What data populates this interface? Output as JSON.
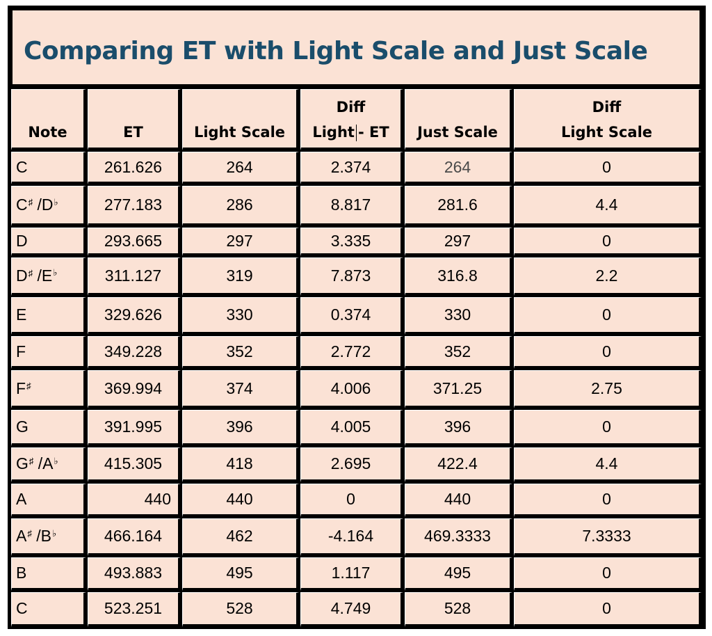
{
  "title": "Comparing ET with Light Scale and Just Scale",
  "headers": [
    {
      "line1": "",
      "line2": "Note"
    },
    {
      "line1": "",
      "line2": "ET"
    },
    {
      "line1": "",
      "line2": "Light Scale"
    },
    {
      "line1": "Diff",
      "line2a": "Light",
      "line2b": "- ET"
    },
    {
      "line1": "",
      "line2": "Just Scale"
    },
    {
      "line1": "Diff",
      "line2": "Light Scale"
    }
  ],
  "rows": [
    {
      "note": {
        "base": "C"
      },
      "et": "261.626",
      "light": "264",
      "diff_et": "2.374",
      "just": "264",
      "diff_just": "0"
    },
    {
      "note": {
        "base": "C",
        "acc": "♯",
        "sep": " /",
        "base2": "D",
        "acc2": "♭"
      },
      "et": "277.183",
      "light": "286",
      "diff_et": "8.817",
      "just": "281.6",
      "diff_just": "4.4"
    },
    {
      "note": {
        "base": "D"
      },
      "et": "293.665",
      "light": "297",
      "diff_et": "3.335",
      "just": "297",
      "diff_just": "0"
    },
    {
      "note": {
        "base": "D",
        "acc": "♯",
        "sep": " /",
        "base2": "E",
        "acc2": "♭"
      },
      "et": "311.127",
      "light": "319",
      "diff_et": "7.873",
      "just": "316.8",
      "diff_just": "2.2"
    },
    {
      "note": {
        "base": "E"
      },
      "et": "329.626",
      "light": "330",
      "diff_et": "0.374",
      "just": "330",
      "diff_just": "0"
    },
    {
      "note": {
        "base": "F"
      },
      "et": "349.228",
      "light": "352",
      "diff_et": "2.772",
      "just": "352",
      "diff_just": "0"
    },
    {
      "note": {
        "base": "F",
        "acc": "♯"
      },
      "et": "369.994",
      "light": "374",
      "diff_et": "4.006",
      "just": "371.25",
      "diff_just": "2.75"
    },
    {
      "note": {
        "base": "G"
      },
      "et": "391.995",
      "light": "396",
      "diff_et": "4.005",
      "just": "396",
      "diff_just": "0"
    },
    {
      "note": {
        "base": "G",
        "acc": "♯",
        "sep": " /",
        "base2": "A",
        "acc2": "♭"
      },
      "et": "415.305",
      "light": "418",
      "diff_et": "2.695",
      "just": "422.4",
      "diff_just": "4.4"
    },
    {
      "note": {
        "base": "A"
      },
      "et": "440",
      "light": "440",
      "diff_et": "0",
      "just": "440",
      "diff_just": "0"
    },
    {
      "note": {
        "base": "A",
        "acc": "♯",
        "sep": " /",
        "base2": "B",
        "acc2": "♭"
      },
      "et": "466.164",
      "light": "462",
      "diff_et": "-4.164",
      "just": "469.3333",
      "diff_just": "7.3333"
    },
    {
      "note": {
        "base": "B"
      },
      "et": "493.883",
      "light": "495",
      "diff_et": "1.117",
      "just": "495",
      "diff_just": "0"
    },
    {
      "note": {
        "base": "C"
      },
      "et": "523.251",
      "light": "528",
      "diff_et": "4.749",
      "just": "528",
      "diff_just": "0"
    }
  ],
  "colors": {
    "cell_bg": "#fbe2d5",
    "title_text": "#1a4d6b",
    "grid": "#000000"
  }
}
